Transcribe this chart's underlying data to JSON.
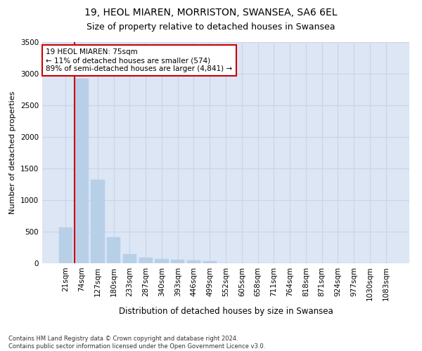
{
  "title": "19, HEOL MIAREN, MORRISTON, SWANSEA, SA6 6EL",
  "subtitle": "Size of property relative to detached houses in Swansea",
  "xlabel": "Distribution of detached houses by size in Swansea",
  "ylabel": "Number of detached properties",
  "bar_labels": [
    "21sqm",
    "74sqm",
    "127sqm",
    "180sqm",
    "233sqm",
    "287sqm",
    "340sqm",
    "393sqm",
    "446sqm",
    "499sqm",
    "552sqm",
    "605sqm",
    "658sqm",
    "711sqm",
    "764sqm",
    "818sqm",
    "871sqm",
    "924sqm",
    "977sqm",
    "1030sqm",
    "1083sqm"
  ],
  "bar_values": [
    570,
    2920,
    1320,
    410,
    150,
    90,
    65,
    55,
    45,
    35,
    0,
    0,
    0,
    0,
    0,
    0,
    0,
    0,
    0,
    0,
    0
  ],
  "bar_color": "#b8cfe8",
  "bar_edgecolor": "#b8cfe8",
  "highlight_color": "#cc0000",
  "annotation_text": "19 HEOL MIAREN: 75sqm\n← 11% of detached houses are smaller (574)\n89% of semi-detached houses are larger (4,841) →",
  "annotation_box_edgecolor": "#cc0000",
  "ylim": [
    0,
    3500
  ],
  "yticks": [
    0,
    500,
    1000,
    1500,
    2000,
    2500,
    3000,
    3500
  ],
  "grid_color": "#c8d4e8",
  "background_color": "#dce6f5",
  "footnote": "Contains HM Land Registry data © Crown copyright and database right 2024.\nContains public sector information licensed under the Open Government Licence v3.0.",
  "title_fontsize": 10,
  "subtitle_fontsize": 9,
  "xlabel_fontsize": 8.5,
  "ylabel_fontsize": 8,
  "tick_fontsize": 7.5,
  "annotation_fontsize": 7.5,
  "footnote_fontsize": 6
}
